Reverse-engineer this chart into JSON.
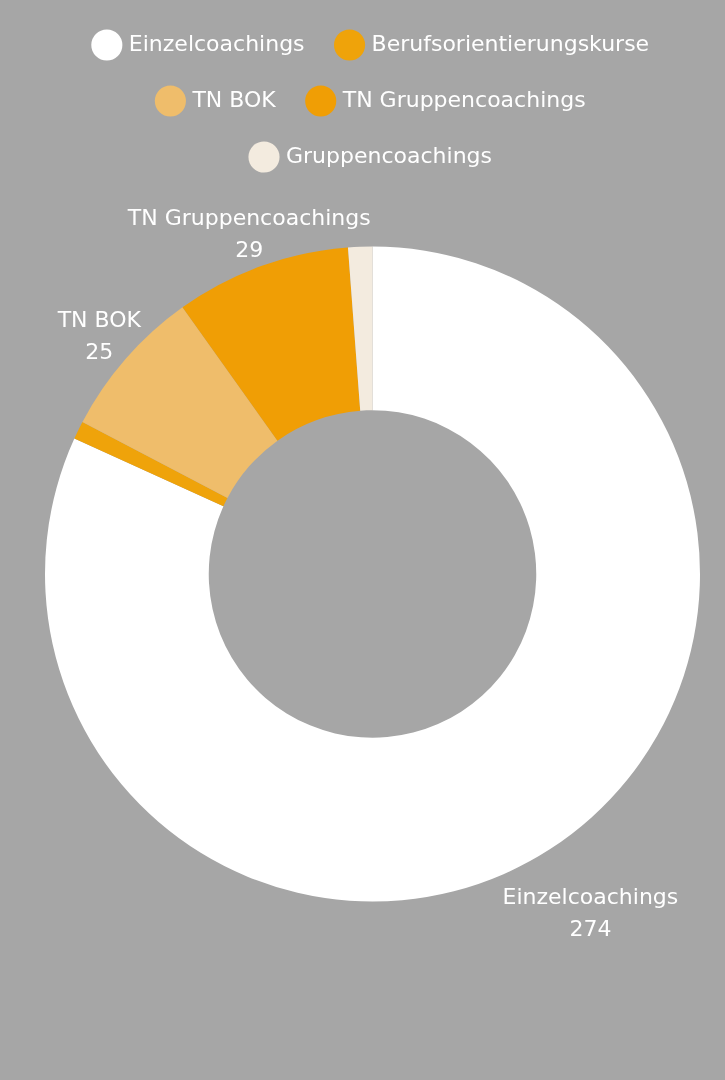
{
  "chart_data": {
    "type": "donut",
    "categories": [
      "Einzelcoachings",
      "Berufsorientierungskurse",
      "TN BOK",
      "TN Gruppencoachings",
      "Gruppencoachings"
    ],
    "values": [
      274,
      3,
      25,
      29,
      4
    ],
    "colors": [
      "#ffffff",
      "#efa30a",
      "#efbd6b",
      "#f09e05",
      "#f3ebdf"
    ],
    "value_labels": [
      "274",
      null,
      "25",
      "29",
      null
    ],
    "legend": "top"
  }
}
